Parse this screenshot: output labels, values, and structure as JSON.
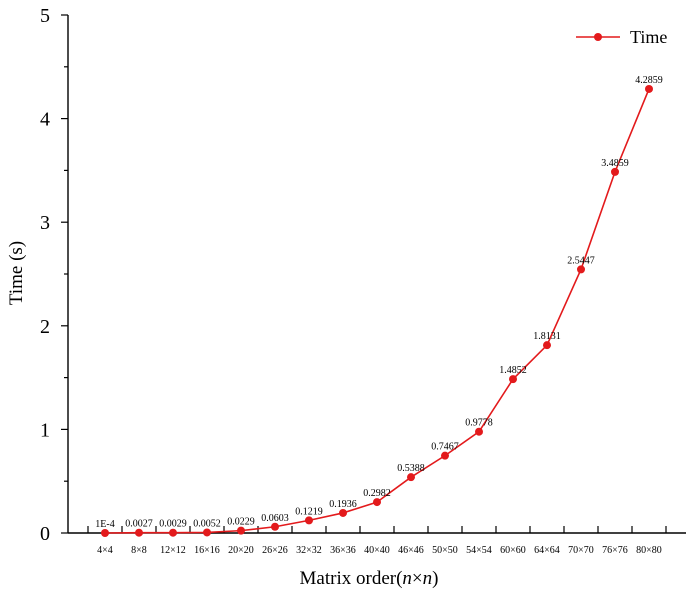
{
  "chart_data": {
    "type": "line",
    "title": "",
    "xlabel_prefix": "Matrix order(",
    "xlabel_var1": "n",
    "xlabel_times": "×",
    "xlabel_var2": "n",
    "xlabel_suffix": ")",
    "ylabel": "Time (s)",
    "ylim": [
      0,
      5
    ],
    "yticks": [
      "0",
      "1",
      "2",
      "3",
      "4",
      "5"
    ],
    "legend": {
      "position": "top-right",
      "label": "Time"
    },
    "color": "#e31a1c",
    "categories": [
      "4×4",
      "8×8",
      "12×12",
      "16×16",
      "20×20",
      "26×26",
      "32×32",
      "36×36",
      "40×40",
      "46×46",
      "50×50",
      "54×54",
      "60×60",
      "64×64",
      "70×70",
      "76×76",
      "80×80"
    ],
    "series": [
      {
        "name": "Time",
        "values": [
          0.0001,
          0.0027,
          0.0029,
          0.0052,
          0.0229,
          0.0603,
          0.1219,
          0.1936,
          0.2982,
          0.5388,
          0.7467,
          0.9778,
          1.4852,
          1.8131,
          2.5447,
          3.4859,
          4.2859
        ],
        "labels": [
          "1E-4",
          "0.0027",
          "0.0029",
          "0.0052",
          "0.0229",
          "0.0603",
          "0.1219",
          "0.1936",
          "0.2982",
          "0.5388",
          "0.7467",
          "0.9778",
          "1.4852",
          "1.8131",
          "2.5447",
          "3.4859",
          "4.2859"
        ]
      }
    ]
  }
}
